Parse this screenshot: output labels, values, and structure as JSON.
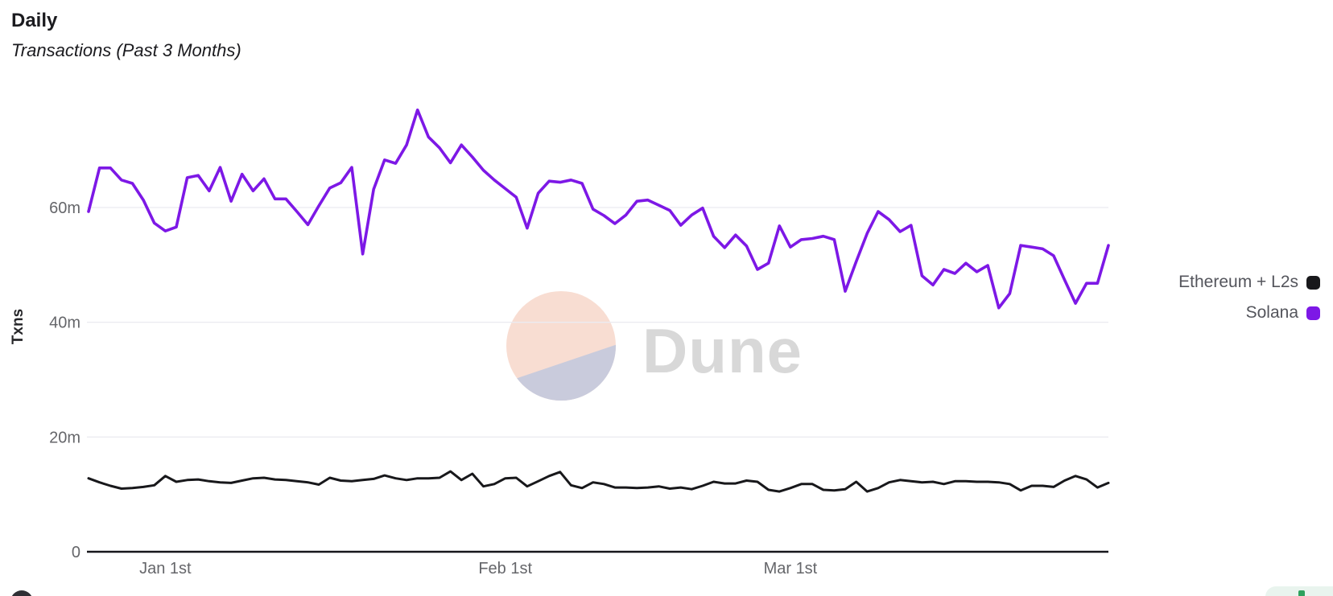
{
  "header": {
    "title": "Daily",
    "subtitle": "Transactions (Past 3 Months)"
  },
  "legend": [
    {
      "label": "Ethereum + L2s",
      "color": "#18181b"
    },
    {
      "label": "Solana",
      "color": "#7d18e6"
    }
  ],
  "watermark": {
    "text": "Dune",
    "circle_top_color": "#f8ddd2",
    "circle_bottom_color": "#c9cbdc",
    "text_color": "#d8d8d8"
  },
  "footer": {
    "badge_color": "#e9f4ee",
    "badge_dot_color": "#2ea25e"
  },
  "chart_data": {
    "type": "line",
    "title": "Daily Transactions (Past 3 Months)",
    "xlabel": "",
    "ylabel": "Txns",
    "unit": "millions of transactions per day",
    "ylim": [
      0,
      80
    ],
    "grid": "horizontal",
    "legend_position": "right",
    "y_ticks": [
      {
        "label": "0",
        "value": 0
      },
      {
        "label": "20m",
        "value": 20
      },
      {
        "label": "40m",
        "value": 40
      },
      {
        "label": "60m",
        "value": 60
      }
    ],
    "x_tick_labels": [
      {
        "label": "Jan 1st",
        "index": 7
      },
      {
        "label": "Feb 1st",
        "index": 38
      },
      {
        "label": "Mar 1st",
        "index": 64
      }
    ],
    "series": [
      {
        "name": "Ethereum + L2s",
        "color": "#18181b",
        "values": [
          12.8,
          12.1,
          11.5,
          11.0,
          11.1,
          11.3,
          11.6,
          13.2,
          12.2,
          12.5,
          12.6,
          12.3,
          12.1,
          12.0,
          12.4,
          12.8,
          12.9,
          12.6,
          12.5,
          12.3,
          12.1,
          11.7,
          12.9,
          12.4,
          12.3,
          12.5,
          12.7,
          13.3,
          12.8,
          12.5,
          12.8,
          12.8,
          12.9,
          14.0,
          12.5,
          13.6,
          11.4,
          11.8,
          12.8,
          12.9,
          11.4,
          12.3,
          13.2,
          13.9,
          11.6,
          11.1,
          12.1,
          11.8,
          11.2,
          11.2,
          11.1,
          11.2,
          11.4,
          11.0,
          11.2,
          10.9,
          11.5,
          12.2,
          11.9,
          11.9,
          12.4,
          12.2,
          10.8,
          10.5,
          11.1,
          11.8,
          11.8,
          10.8,
          10.7,
          10.9,
          12.2,
          10.5,
          11.1,
          12.1,
          12.5,
          12.3,
          12.1,
          12.2,
          11.8,
          12.3,
          12.3,
          12.2,
          12.2,
          12.1,
          11.8,
          10.7,
          11.5,
          11.5,
          11.3,
          12.4,
          13.2,
          12.6,
          11.2,
          12.0
        ]
      },
      {
        "name": "Solana",
        "color": "#7d18e6",
        "values": [
          59.3,
          66.9,
          66.9,
          64.8,
          64.2,
          61.3,
          57.3,
          55.9,
          56.6,
          65.2,
          65.6,
          62.9,
          67.0,
          61.1,
          65.8,
          62.9,
          65.0,
          61.5,
          61.5,
          59.3,
          57.0,
          60.3,
          63.4,
          64.3,
          67.0,
          51.9,
          63.2,
          68.3,
          67.7,
          70.9,
          77.0,
          72.3,
          70.4,
          67.8,
          70.9,
          68.8,
          66.5,
          64.8,
          63.3,
          61.8,
          56.4,
          62.5,
          64.6,
          64.4,
          64.8,
          64.2,
          59.7,
          58.6,
          57.2,
          58.7,
          61.1,
          61.3,
          60.4,
          59.5,
          56.9,
          58.7,
          59.9,
          55.0,
          53.0,
          55.2,
          53.3,
          49.2,
          50.3,
          56.8,
          53.1,
          54.4,
          54.6,
          55.0,
          54.4,
          45.4,
          50.6,
          55.5,
          59.3,
          57.9,
          55.8,
          56.9,
          48.1,
          46.5,
          49.2,
          48.5,
          50.3,
          48.8,
          49.9,
          42.5,
          45.0,
          53.4,
          53.1,
          52.8,
          51.6,
          47.4,
          43.3,
          46.8,
          46.8,
          53.4
        ]
      }
    ]
  }
}
